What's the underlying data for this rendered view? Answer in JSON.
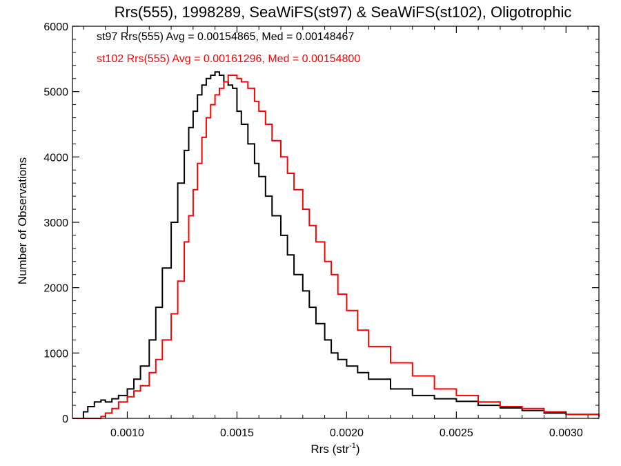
{
  "chart_data": {
    "type": "line",
    "title": "Rrs(555), 1998289, SeaWiFS(st97) & SeaWiFS(st102), Oligotrophic",
    "xlabel": "Rrs (str",
    "xlabel_sup": "-1",
    "xlabel_close": ")",
    "ylabel": "Number of Observations",
    "xlim": [
      0.00075,
      0.00315
    ],
    "ylim": [
      0,
      6000
    ],
    "xticks": [
      0.001,
      0.0015,
      0.002,
      0.0025,
      0.003
    ],
    "xtick_labels": [
      "0.0010",
      "0.0015",
      "0.0020",
      "0.0025",
      "0.0030"
    ],
    "yticks": [
      0,
      1000,
      2000,
      3000,
      4000,
      5000,
      6000
    ],
    "ytick_labels": [
      "0",
      "1000",
      "2000",
      "3000",
      "4000",
      "5000",
      "6000"
    ],
    "grid": false,
    "step": true,
    "annotations": [
      {
        "text": "st97 Rrs(555) Avg = 0.00154865, Med = 0.00148467",
        "color": "#000000"
      },
      {
        "text": "st102 Rrs(555) Avg = 0.00161296, Med = 0.00154800",
        "color": "#ff0000"
      }
    ],
    "series": [
      {
        "color": "#000000",
        "x": [
          0.00075,
          0.00078,
          0.0008,
          0.00082,
          0.00085,
          0.00088,
          0.0009,
          0.00093,
          0.00096,
          0.001,
          0.00103,
          0.00106,
          0.0011,
          0.00113,
          0.00116,
          0.0012,
          0.00123,
          0.00126,
          0.00128,
          0.0013,
          0.00132,
          0.00134,
          0.00136,
          0.00138,
          0.0014,
          0.00142,
          0.00144,
          0.00146,
          0.00148,
          0.0015,
          0.00152,
          0.00155,
          0.00158,
          0.0016,
          0.00163,
          0.00166,
          0.0017,
          0.00173,
          0.00176,
          0.0018,
          0.00183,
          0.00186,
          0.0019,
          0.00193,
          0.00196,
          0.002,
          0.00205,
          0.0021,
          0.0022,
          0.0023,
          0.0024,
          0.0025,
          0.0026,
          0.0027,
          0.0028,
          0.0029,
          0.003,
          0.00315
        ],
        "y": [
          0,
          0,
          100,
          180,
          250,
          280,
          250,
          300,
          350,
          450,
          600,
          800,
          1200,
          1700,
          2300,
          3000,
          3600,
          4100,
          4450,
          4700,
          4950,
          5100,
          5200,
          5250,
          5300,
          5250,
          5150,
          5100,
          5050,
          4700,
          4500,
          4200,
          3900,
          3700,
          3400,
          3100,
          2800,
          2500,
          2200,
          1950,
          1700,
          1450,
          1200,
          1000,
          900,
          800,
          700,
          600,
          450,
          350,
          300,
          260,
          200,
          160,
          120,
          80,
          60,
          30
        ]
      },
      {
        "color": "#ff0000",
        "x": [
          0.00075,
          0.00085,
          0.00088,
          0.0009,
          0.00093,
          0.00096,
          0.001,
          0.00103,
          0.00106,
          0.0011,
          0.00113,
          0.00116,
          0.0012,
          0.00123,
          0.00126,
          0.00128,
          0.0013,
          0.00132,
          0.00134,
          0.00136,
          0.00138,
          0.0014,
          0.00142,
          0.00144,
          0.00146,
          0.00148,
          0.0015,
          0.00152,
          0.00155,
          0.00158,
          0.0016,
          0.00163,
          0.00166,
          0.0017,
          0.00173,
          0.00176,
          0.0018,
          0.00183,
          0.00186,
          0.0019,
          0.00193,
          0.00196,
          0.002,
          0.00205,
          0.0021,
          0.0022,
          0.0023,
          0.0024,
          0.0025,
          0.0026,
          0.0027,
          0.0028,
          0.0029,
          0.003,
          0.00315
        ],
        "y": [
          0,
          0,
          30,
          80,
          150,
          250,
          330,
          420,
          500,
          700,
          900,
          1200,
          1600,
          2100,
          2700,
          3100,
          3500,
          3900,
          4300,
          4600,
          4800,
          4950,
          5050,
          5150,
          5250,
          5250,
          5200,
          5150,
          5050,
          4850,
          4700,
          4500,
          4250,
          4000,
          3750,
          3500,
          3200,
          2950,
          2700,
          2400,
          2200,
          1900,
          1650,
          1350,
          1100,
          850,
          650,
          450,
          350,
          250,
          180,
          150,
          100,
          60,
          40
        ]
      }
    ]
  }
}
